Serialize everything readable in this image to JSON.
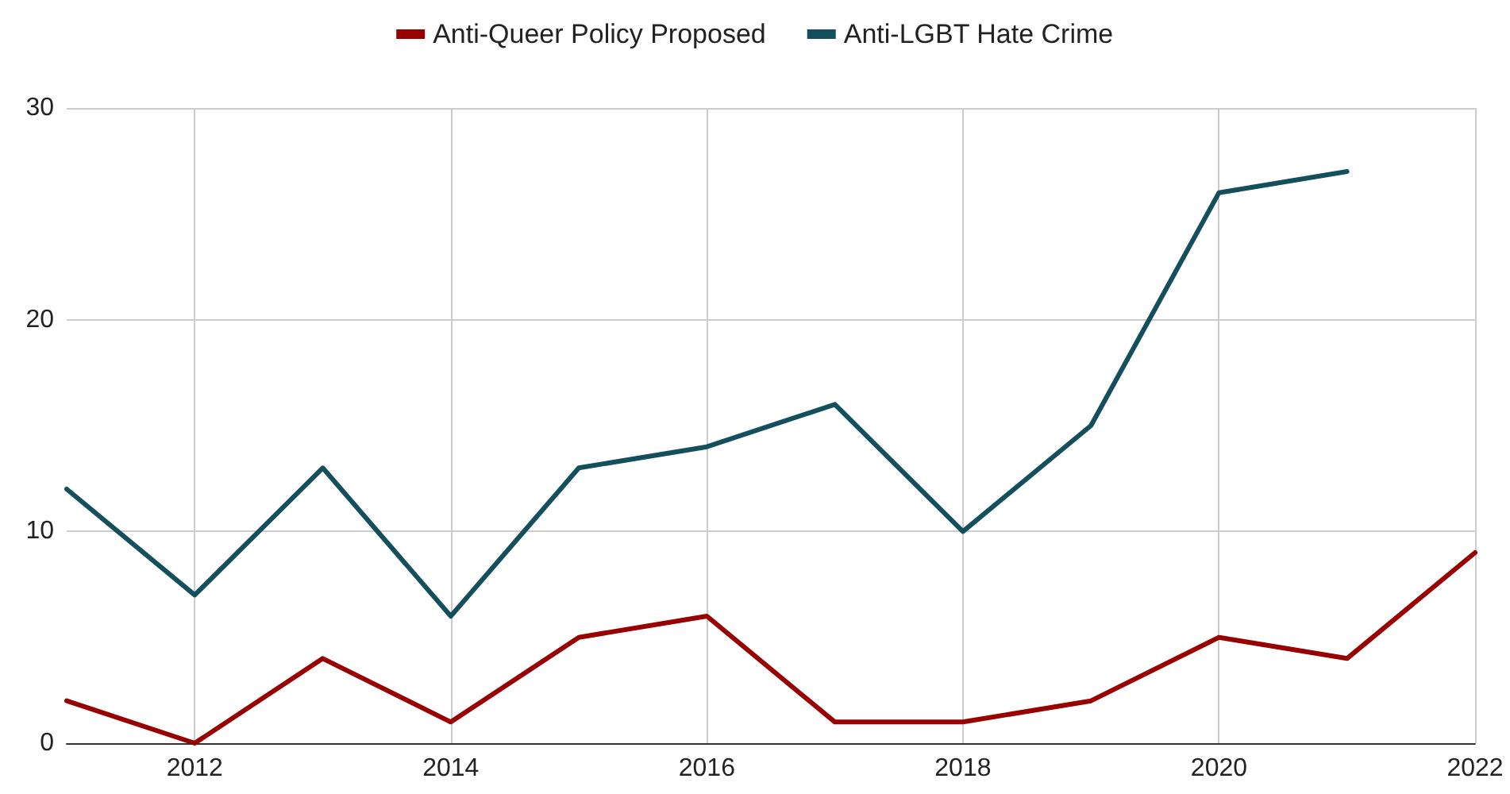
{
  "chart_data": {
    "type": "line",
    "x": [
      2011,
      2012,
      2013,
      2014,
      2015,
      2016,
      2017,
      2018,
      2019,
      2020,
      2021,
      2022
    ],
    "series": [
      {
        "name": "Anti-Queer Policy Proposed",
        "color": "#990000",
        "values": [
          2,
          0,
          4,
          1,
          5,
          6,
          1,
          1,
          2,
          5,
          4,
          9
        ]
      },
      {
        "name": "Anti-LGBT Hate Crime",
        "color": "#134f5c",
        "values": [
          12,
          7,
          13,
          6,
          13,
          14,
          16,
          10,
          15,
          26,
          27,
          null
        ]
      }
    ],
    "xlim": [
      2011,
      2022
    ],
    "xticks": [
      2012,
      2014,
      2016,
      2018,
      2020,
      2022
    ],
    "ylim": [
      0,
      30
    ],
    "yticks": [
      0,
      10,
      20,
      30
    ],
    "grid": true,
    "legend": "top",
    "marker": "none",
    "line_style": "solid"
  }
}
